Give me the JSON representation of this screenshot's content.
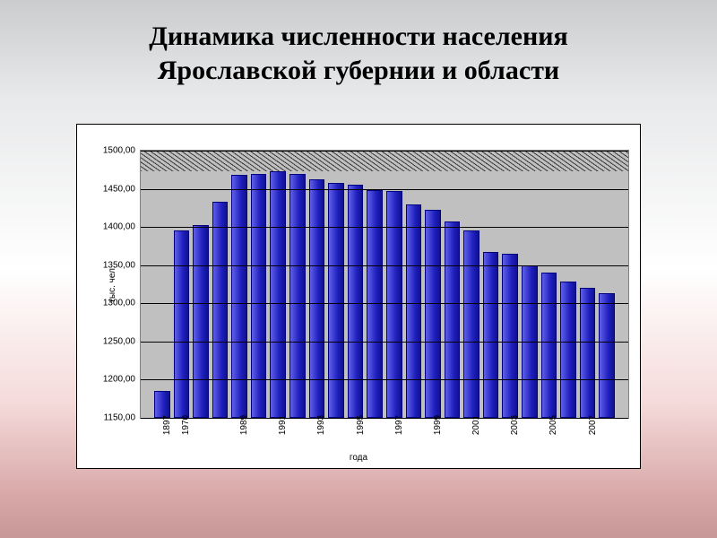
{
  "title_line1": "Динамика численности населения",
  "title_line2": "Ярославской губернии и области",
  "title_fontsize": 30,
  "chart": {
    "type": "bar",
    "ylabel": "тыс. чел.",
    "xlabel": "года",
    "bar_fill": "linear-gradient(90deg,#6060e8 0%,#2020c0 60%,#101090 100%)",
    "bar_border": "#000080",
    "plot_bg": "#c0c0c0",
    "hatch_color": "rgba(0,0,0,0.7)",
    "ylim_min": 1150,
    "ylim_max": 1500,
    "yticks": [
      1150.0,
      1200.0,
      1250.0,
      1300.0,
      1350.0,
      1400.0,
      1450.0,
      1500.0
    ],
    "ytick_labels": [
      "1150,00",
      "1200,00",
      "1250,00",
      "1300,00",
      "1350,00",
      "1400,00",
      "1450,00",
      "1500,00"
    ],
    "bars": [
      {
        "year": "1897",
        "value": 1185
      },
      {
        "year": "1970",
        "value": 1395
      },
      {
        "year": "",
        "value": 1402
      },
      {
        "year": "",
        "value": 1433
      },
      {
        "year": "1989",
        "value": 1468
      },
      {
        "year": "",
        "value": 1470
      },
      {
        "year": "1991",
        "value": 1473
      },
      {
        "year": "",
        "value": 1470
      },
      {
        "year": "1993",
        "value": 1463
      },
      {
        "year": "",
        "value": 1458
      },
      {
        "year": "1995",
        "value": 1455
      },
      {
        "year": "",
        "value": 1448
      },
      {
        "year": "1997",
        "value": 1447
      },
      {
        "year": "",
        "value": 1430
      },
      {
        "year": "1999",
        "value": 1422
      },
      {
        "year": "",
        "value": 1407
      },
      {
        "year": "2001",
        "value": 1395
      },
      {
        "year": "",
        "value": 1367
      },
      {
        "year": "2003",
        "value": 1365
      },
      {
        "year": "",
        "value": 1350
      },
      {
        "year": "2005",
        "value": 1340
      },
      {
        "year": "",
        "value": 1328
      },
      {
        "year": "2007",
        "value": 1320
      },
      {
        "year": "",
        "value": 1313
      }
    ]
  }
}
